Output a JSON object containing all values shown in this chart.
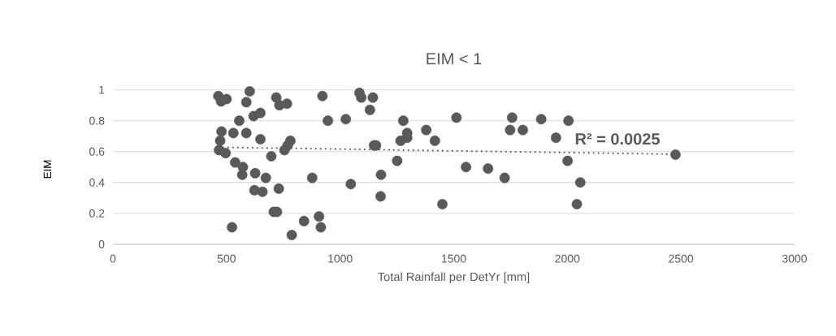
{
  "chart_data": {
    "type": "scatter",
    "title": "EIM < 1",
    "xlabel": "Total Rainfall per DetYr [mm]",
    "ylabel": "EIM",
    "xlim": [
      0,
      3000
    ],
    "xticks": [
      0,
      500,
      1000,
      1500,
      2000,
      2500,
      3000
    ],
    "ylim": [
      0,
      1
    ],
    "yticks": [
      0,
      0.2,
      0.4,
      0.6,
      0.8,
      1
    ],
    "grid": "y",
    "annotations": [
      "R² = 0.0025"
    ],
    "series": [
      {
        "color": "#595959",
        "marker": "circle",
        "x": [
          464,
          476,
          500,
          602,
          587,
          719,
          733,
          766,
          922,
          556,
          619,
          649,
          946,
          478,
          530,
          587,
          472,
          649,
          781,
          769,
          755,
          467,
          496,
          697,
          538,
          572,
          569,
          626,
          673,
          877,
          623,
          658,
          730,
          708,
          722,
          524,
          787,
          841,
          907,
          915,
          1085,
          1093,
          1144,
          1131,
          1025,
          1278,
          1512,
          1757,
          1748,
          1804,
          1885,
          1379,
          1295,
          1295,
          1266,
          1417,
          1950,
          1149,
          1158,
          1251,
          1554,
          1651,
          1724,
          1047,
          1180,
          1178,
          1450,
          2005,
          2001,
          2057,
          2042,
          2476
        ],
        "values": [
          0.96,
          0.925,
          0.94,
          0.99,
          0.92,
          0.95,
          0.9,
          0.91,
          0.96,
          0.8,
          0.83,
          0.85,
          0.8,
          0.73,
          0.72,
          0.72,
          0.67,
          0.68,
          0.67,
          0.64,
          0.61,
          0.61,
          0.59,
          0.57,
          0.53,
          0.5,
          0.45,
          0.46,
          0.43,
          0.43,
          0.35,
          0.34,
          0.36,
          0.21,
          0.21,
          0.11,
          0.06,
          0.15,
          0.18,
          0.11,
          0.98,
          0.95,
          0.95,
          0.87,
          0.81,
          0.8,
          0.82,
          0.82,
          0.74,
          0.74,
          0.81,
          0.74,
          0.72,
          0.69,
          0.67,
          0.67,
          0.69,
          0.64,
          0.64,
          0.54,
          0.5,
          0.49,
          0.43,
          0.39,
          0.45,
          0.31,
          0.26,
          0.8,
          0.54,
          0.4,
          0.26,
          0.58
        ]
      },
      {
        "type": "line",
        "color": "#595959",
        "line_style": "dotted",
        "marker": "none",
        "x": [
          464,
          2476
        ],
        "values": [
          0.628,
          0.583
        ]
      }
    ]
  }
}
